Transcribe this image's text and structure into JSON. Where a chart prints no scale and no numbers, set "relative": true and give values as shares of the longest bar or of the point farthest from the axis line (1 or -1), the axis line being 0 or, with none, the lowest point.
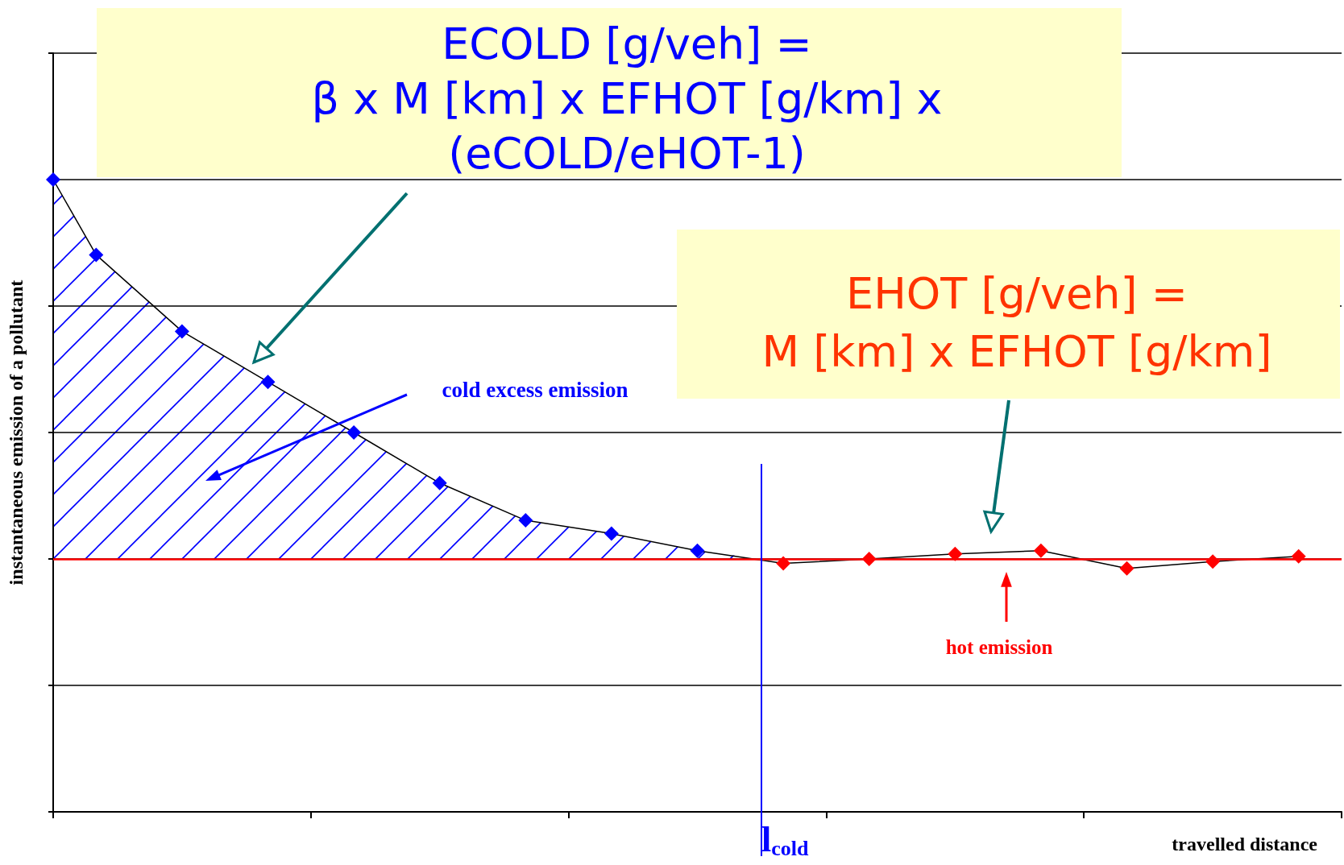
{
  "chart_data": {
    "type": "line",
    "relative": true,
    "xlabel": "travelled distance",
    "ylabel": "instantaneous emission of a pollutant",
    "categories": [
      null,
      null,
      null,
      null,
      null,
      null,
      null,
      null,
      null,
      null,
      null,
      null,
      null,
      null,
      null,
      null,
      null,
      null,
      null,
      null,
      null,
      null,
      null,
      null,
      null,
      null,
      null,
      null,
      null,
      null,
      null
    ],
    "grid": "y",
    "marker": "diamond",
    "series": [
      {
        "color": "#000000",
        "values": [
          1.0,
          0.881,
          null,
          0.76,
          null,
          0.68,
          null,
          0.6,
          null,
          0.52,
          null,
          0.461,
          null,
          0.44,
          null,
          0.413,
          null,
          0.393,
          null,
          0.4,
          null,
          0.408,
          null,
          0.413,
          null,
          0.385,
          null,
          0.396,
          null,
          0.404,
          null
        ],
        "colors": [
          "#0000ff",
          "#0000ff",
          null,
          "#0000ff",
          null,
          "#0000ff",
          null,
          "#0000ff",
          null,
          "#0000ff",
          null,
          "#0000ff",
          null,
          "#0000ff",
          null,
          "#0000ff",
          null,
          "#ff0000",
          null,
          "#ff0000",
          null,
          "#ff0000",
          null,
          "#ff0000",
          null,
          "#ff0000",
          null,
          "#ff0000",
          null,
          "#ff0000",
          null
        ]
      }
    ],
    "ref_lines": [
      {
        "axis": "y",
        "value": 0.4,
        "color": "#ff0000"
      }
    ],
    "annotations": [
      "ECOLD [g/veh] =\nβ x M [km] x EFHOT [g/km] x\n(eCOLD/eHOT-1)",
      "EHOT [g/veh] =\nM [km] x EFHOT [g/km]",
      "cold excess emission",
      "hot emission",
      "l$_{cold}$"
    ]
  }
}
